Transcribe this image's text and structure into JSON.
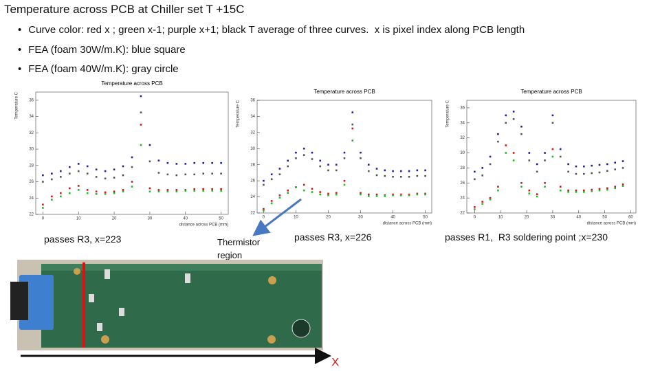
{
  "slide": {
    "title": "Temperature across PCB at Chiller set T +15C",
    "bullets": [
      "Curve color: red x ; green x-1; purple x+1; black T average of three curves.  x is pixel index along PCB length",
      "FEA (foam 30W/m.K): blue square",
      "FEA (foam 40W/m.K): gray circle"
    ],
    "captions": [
      "passes R3, x=223",
      "passes R3, x=226",
      "passes R1,  R3 soldering point ;x=230"
    ],
    "arrow_label": "Thermistor region",
    "axis_marker": "X"
  },
  "chart_data": [
    {
      "type": "scatter",
      "title": "Temperature across PCB",
      "x_label": "distance across PCB (mm)",
      "y_label": "Temperature C",
      "x": [
        0,
        2.5,
        5,
        7.5,
        10,
        12.5,
        15,
        17.5,
        20,
        22.5,
        25,
        27.5,
        30,
        32.5,
        35,
        37.5,
        40,
        42.5,
        45,
        47.5,
        50
      ],
      "xlim": [
        -2,
        52
      ],
      "xticks": [
        0,
        10,
        20,
        30,
        40,
        50
      ],
      "ylim": [
        22,
        37
      ],
      "yticks": [
        22,
        24,
        26,
        28,
        30,
        32,
        34,
        36
      ],
      "series": [
        {
          "color": "#1f1fa0",
          "values": [
            26.8,
            27.0,
            27.3,
            27.8,
            28.2,
            27.9,
            27.5,
            27.3,
            27.5,
            27.9,
            29.0,
            36.5,
            30.5,
            28.6,
            28.3,
            28.2,
            28.2,
            28.3,
            28.3,
            28.3,
            28.3
          ]
        },
        {
          "color": "#555555",
          "values": [
            26.0,
            26.3,
            26.6,
            27.0,
            27.3,
            27.0,
            26.6,
            26.4,
            26.5,
            26.8,
            27.8,
            34.5,
            28.5,
            27.1,
            26.9,
            26.8,
            26.9,
            26.9,
            27.0,
            27.0,
            27.0
          ]
        },
        {
          "color": "#d01818",
          "values": [
            23.2,
            24.2,
            24.6,
            25.2,
            25.5,
            25.0,
            24.8,
            24.7,
            24.8,
            25.0,
            26.0,
            33.0,
            25.2,
            25.0,
            25.0,
            25.0,
            25.0,
            25.1,
            25.1,
            25.1,
            25.1
          ]
        },
        {
          "color": "#22b822",
          "values": [
            22.8,
            23.8,
            24.2,
            24.6,
            25.0,
            24.6,
            24.5,
            24.5,
            24.6,
            24.8,
            25.4,
            30.5,
            24.8,
            24.8,
            24.8,
            24.8,
            24.9,
            24.9,
            24.9,
            24.9,
            24.9
          ]
        }
      ]
    },
    {
      "type": "scatter",
      "title": "Temperature across PCB",
      "x_label": "distance across PCB (mm)",
      "y_label": "Temperature C",
      "x": [
        0,
        2.5,
        5,
        7.5,
        10,
        12.5,
        15,
        17.5,
        20,
        22.5,
        25,
        27.5,
        30,
        32.5,
        35,
        37.5,
        40,
        42.5,
        45,
        47.5,
        50
      ],
      "xlim": [
        -2,
        52
      ],
      "xticks": [
        0,
        10,
        20,
        30,
        40,
        50
      ],
      "ylim": [
        22,
        36
      ],
      "yticks": [
        22,
        24,
        26,
        28,
        30,
        32,
        34,
        36
      ],
      "series": [
        {
          "color": "#1f1fa0",
          "values": [
            26.0,
            26.8,
            27.5,
            28.5,
            29.5,
            30.0,
            29.5,
            28.5,
            28.0,
            28.0,
            29.5,
            34.5,
            29.5,
            28.0,
            27.5,
            27.3,
            27.2,
            27.2,
            27.2,
            27.3,
            27.3
          ]
        },
        {
          "color": "#555555",
          "values": [
            25.5,
            26.2,
            26.8,
            27.8,
            28.8,
            29.2,
            28.7,
            27.8,
            27.3,
            27.3,
            28.8,
            33.0,
            28.8,
            27.2,
            26.7,
            26.6,
            26.5,
            26.5,
            26.5,
            26.6,
            26.6
          ]
        },
        {
          "color": "#d01818",
          "values": [
            22.5,
            23.5,
            24.2,
            24.8,
            25.2,
            25.5,
            25.0,
            24.6,
            24.4,
            24.5,
            26.0,
            32.5,
            24.5,
            24.3,
            24.3,
            24.2,
            24.3,
            24.3,
            24.3,
            24.4,
            24.4
          ]
        },
        {
          "color": "#22b822",
          "values": [
            22.3,
            23.2,
            23.9,
            24.5,
            25.2,
            24.8,
            24.6,
            24.3,
            24.2,
            24.3,
            25.5,
            31.0,
            24.3,
            24.1,
            24.1,
            24.1,
            24.2,
            24.2,
            24.2,
            24.3,
            24.3
          ]
        }
      ]
    },
    {
      "type": "scatter",
      "title": "Temperature across PCB",
      "x_label": "distance across PCB (mm)",
      "y_label": "Temperature C",
      "x": [
        0,
        3,
        6,
        9,
        12,
        15,
        18,
        21,
        24,
        27,
        30,
        33,
        36,
        39,
        42,
        45,
        48,
        51,
        54,
        57,
        60
      ],
      "xlim": [
        -3,
        62
      ],
      "xticks": [
        0,
        10,
        20,
        30,
        40,
        50,
        60
      ],
      "ylim": [
        22,
        37
      ],
      "yticks": [
        22,
        24,
        26,
        28,
        30,
        32,
        34,
        36
      ],
      "series": [
        {
          "color": "#1f1fa0",
          "values": [
            27.5,
            28.0,
            29.5,
            32.5,
            35.0,
            35.5,
            33.5,
            30.0,
            28.5,
            30.0,
            35.0,
            30.5,
            28.5,
            28.2,
            28.2,
            28.3,
            28.4,
            28.5,
            28.7,
            28.9,
            null
          ]
        },
        {
          "color": "#555555",
          "values": [
            26.5,
            27.0,
            28.5,
            31.5,
            34.0,
            34.5,
            32.5,
            29.0,
            27.5,
            29.0,
            34.0,
            29.5,
            27.5,
            27.2,
            27.2,
            27.3,
            27.4,
            27.6,
            27.8,
            28.0,
            null
          ]
        },
        {
          "color": "#d01818",
          "values": [
            22.8,
            23.5,
            24.0,
            25.5,
            31.0,
            30.0,
            26.0,
            25.0,
            24.5,
            26.0,
            30.5,
            25.5,
            25.0,
            25.0,
            25.0,
            25.1,
            25.2,
            25.3,
            25.5,
            25.8,
            null
          ]
        },
        {
          "color": "#22b822",
          "values": [
            22.5,
            23.2,
            23.8,
            25.0,
            30.0,
            29.0,
            25.5,
            24.6,
            24.2,
            25.5,
            29.5,
            25.0,
            24.8,
            24.8,
            24.8,
            24.9,
            25.0,
            25.1,
            25.3,
            25.6,
            null
          ]
        }
      ]
    }
  ]
}
